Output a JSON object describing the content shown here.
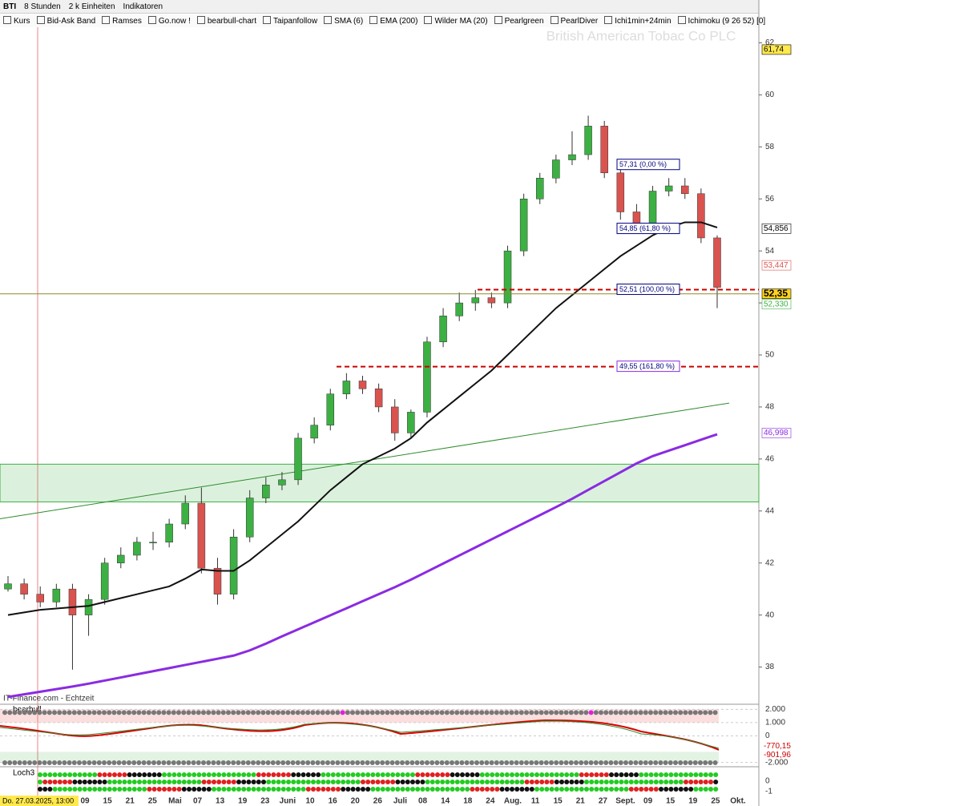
{
  "toolbar": {
    "symbol": "BTI",
    "interval": "8 Stunden",
    "units": "2 k Einheiten",
    "indicators_button": "Indikatoren"
  },
  "indicator_tabs": [
    "Kurs",
    "Bid-Ask Band",
    "Ramses",
    "Go.now !",
    "bearbull-chart",
    "Taipanfollow",
    "SMA (6)",
    "EMA (200)",
    "Wilder MA (20)",
    "Pearlgreen",
    "PearlDiver",
    "Ichi1min+24min",
    "Ichimoku (9 26 52) [0]"
  ],
  "source": "IT-Finance.com - Echtzeit",
  "cursor_label": "Do. 27.03.2025, 13:00",
  "chart_data": {
    "type": "candlestick",
    "title": "British American Tobac Co PLC",
    "open": [
      41.0,
      41.2,
      40.8,
      40.5,
      41.0,
      40.0,
      40.6,
      42.0,
      42.3,
      42.8,
      42.8,
      43.5,
      44.3,
      41.8,
      40.8,
      43.0,
      44.5,
      45.0,
      45.2,
      46.8,
      47.3,
      48.5,
      49.0,
      48.7,
      48.0,
      47.0,
      47.8,
      50.5,
      51.5,
      52.0,
      52.2,
      52.0,
      54.0,
      56.0,
      56.8,
      57.5,
      57.7,
      58.8,
      57.0,
      55.5,
      55.0,
      56.3,
      56.5,
      56.2,
      54.5
    ],
    "high": [
      41.5,
      41.4,
      41.1,
      41.2,
      41.2,
      40.8,
      42.2,
      42.6,
      43.0,
      43.2,
      43.7,
      44.6,
      44.9,
      42.2,
      43.3,
      44.8,
      45.3,
      45.5,
      47.0,
      47.6,
      48.7,
      49.3,
      49.2,
      48.9,
      48.3,
      47.9,
      50.7,
      51.8,
      52.4,
      52.5,
      52.4,
      54.2,
      56.2,
      57.0,
      57.7,
      58.6,
      59.2,
      59.0,
      57.2,
      55.8,
      56.5,
      56.8,
      56.8,
      56.4,
      54.6
    ],
    "low": [
      40.9,
      40.6,
      40.3,
      40.3,
      37.9,
      39.2,
      40.4,
      41.8,
      42.1,
      42.5,
      42.6,
      43.3,
      41.6,
      40.4,
      40.6,
      42.8,
      44.3,
      44.8,
      45.0,
      46.6,
      47.1,
      48.3,
      48.5,
      47.8,
      46.7,
      46.8,
      47.6,
      50.3,
      51.3,
      51.7,
      51.8,
      51.8,
      53.8,
      55.8,
      56.6,
      57.3,
      57.5,
      56.8,
      55.2,
      54.8,
      54.8,
      56.1,
      56.0,
      54.3,
      51.8
    ],
    "close": [
      41.2,
      40.8,
      40.5,
      41.0,
      40.0,
      40.6,
      42.0,
      42.3,
      42.8,
      42.8,
      43.5,
      44.3,
      41.8,
      40.8,
      43.0,
      44.5,
      45.0,
      45.2,
      46.8,
      47.3,
      48.5,
      49.0,
      48.7,
      48.0,
      47.0,
      47.8,
      50.5,
      51.5,
      52.0,
      52.2,
      52.0,
      54.0,
      56.0,
      56.8,
      57.5,
      57.7,
      58.8,
      57.0,
      55.5,
      55.0,
      56.3,
      56.5,
      56.2,
      54.5,
      52.6
    ],
    "up_color": "#3cb043",
    "down_color": "#d9534f",
    "series": [
      {
        "name": "EMA (200)",
        "color": "#8a2be2",
        "values": [
          36.85,
          36.95,
          37.05,
          37.15,
          37.25,
          37.36,
          37.48,
          37.6,
          37.72,
          37.84,
          37.96,
          38.08,
          38.2,
          38.32,
          38.44,
          38.64,
          38.9,
          39.18,
          39.45,
          39.72,
          39.99,
          40.26,
          40.53,
          40.8,
          41.07,
          41.36,
          41.67,
          41.98,
          42.29,
          42.6,
          42.91,
          43.22,
          43.53,
          43.84,
          44.15,
          44.47,
          44.81,
          45.15,
          45.49,
          45.83,
          46.11,
          46.32,
          46.53,
          46.74,
          46.95
        ]
      },
      {
        "name": "Wilder MA (20)",
        "color": "#111111",
        "values": [
          40.0,
          40.1,
          40.2,
          40.25,
          40.3,
          40.35,
          40.5,
          40.65,
          40.8,
          40.95,
          41.1,
          41.4,
          41.75,
          41.7,
          41.7,
          42.1,
          42.6,
          43.1,
          43.6,
          44.2,
          44.8,
          45.3,
          45.8,
          46.1,
          46.4,
          46.8,
          47.4,
          47.9,
          48.4,
          48.9,
          49.4,
          50.0,
          50.6,
          51.2,
          51.8,
          52.3,
          52.8,
          53.3,
          53.8,
          54.2,
          54.6,
          54.9,
          55.1,
          55.1,
          54.9
        ]
      }
    ],
    "annotations": [
      {
        "label": "57,31 (0,00 %)",
        "value": 57.31
      },
      {
        "label": "54,85 (61,80 %)",
        "value": 54.85
      },
      {
        "label": "52,51 (100,00 %)",
        "value": 52.51
      },
      {
        "label": "49,55 (161,80 %)",
        "value": 49.55
      }
    ],
    "price_tags": [
      {
        "value": 61.74,
        "label": "61,74",
        "color": "#000000",
        "background": "#ffe94d"
      },
      {
        "value": 54.856,
        "label": "54,856",
        "color": "#000000",
        "background": "#ffffff"
      },
      {
        "value": 53.447,
        "label": "53,447",
        "color": "#d9534f",
        "background": "#ffffff"
      },
      {
        "value": 52.35,
        "label": "52,35",
        "color": "#000000",
        "background": "#ffd21f"
      },
      {
        "value": 52.33,
        "label": "52,330",
        "color": "#3cb043",
        "background": "#ffffff"
      },
      {
        "value": 46.998,
        "label": "46,998",
        "color": "#8a2be2",
        "background": "#ffffff"
      }
    ],
    "ylim": [
      36.6,
      62.6
    ],
    "yticks": [
      38,
      40,
      42,
      44,
      46,
      48,
      50,
      52,
      54,
      56,
      58,
      60,
      62
    ],
    "x_labels": [
      "09",
      "15",
      "21",
      "25",
      "Mai",
      "07",
      "13",
      "19",
      "23",
      "Juni",
      "10",
      "16",
      "20",
      "26",
      "Juli",
      "08",
      "14",
      "18",
      "24",
      "Aug.",
      "11",
      "15",
      "21",
      "27",
      "Sept.",
      "09",
      "15",
      "19",
      "25",
      "Okt."
    ]
  },
  "bearbull": {
    "name": "bearbull",
    "ylim": [
      2200,
      -2200
    ],
    "yticks": [
      {
        "value": 2000,
        "label": "2.000"
      },
      {
        "value": 1000,
        "label": "1.000"
      },
      0,
      {
        "value": -2000,
        "label": "-2.000"
      }
    ],
    "tags": [
      {
        "value": -770.15,
        "label": "-770,15"
      },
      {
        "value": -901.96,
        "label": "-901,96"
      }
    ]
  },
  "loch3": {
    "name": "Loch3",
    "yticks": [
      0,
      -1
    ]
  }
}
